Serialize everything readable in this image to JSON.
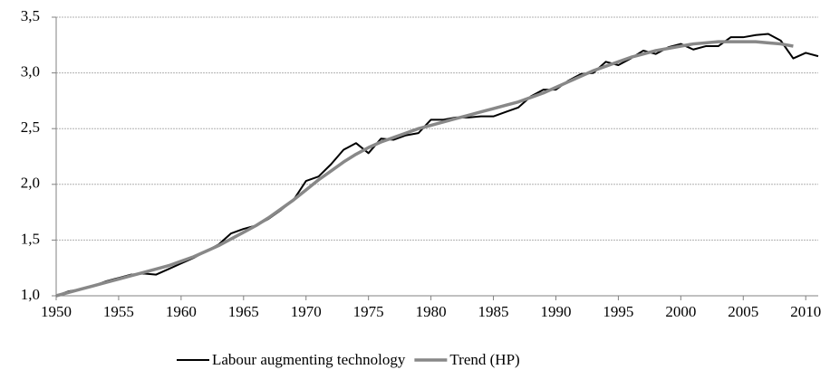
{
  "chart_data": {
    "type": "line",
    "x": [
      1950,
      1951,
      1952,
      1953,
      1954,
      1955,
      1956,
      1957,
      1958,
      1959,
      1960,
      1961,
      1962,
      1963,
      1964,
      1965,
      1966,
      1967,
      1968,
      1969,
      1970,
      1971,
      1972,
      1973,
      1974,
      1975,
      1976,
      1977,
      1978,
      1979,
      1980,
      1981,
      1982,
      1983,
      1984,
      1985,
      1986,
      1987,
      1988,
      1989,
      1990,
      1991,
      1992,
      1993,
      1994,
      1995,
      1996,
      1997,
      1998,
      1999,
      2000,
      2001,
      2002,
      2003,
      2004,
      2005,
      2006,
      2007,
      2008,
      2009,
      2010,
      2011
    ],
    "series": [
      {
        "name": "Labour augmenting technology",
        "color": "#000000",
        "width": 2,
        "values": [
          1.0,
          1.04,
          1.06,
          1.09,
          1.13,
          1.16,
          1.19,
          1.2,
          1.19,
          1.24,
          1.29,
          1.34,
          1.4,
          1.46,
          1.56,
          1.6,
          1.63,
          1.69,
          1.77,
          1.86,
          2.03,
          2.07,
          2.18,
          2.31,
          2.37,
          2.28,
          2.41,
          2.4,
          2.44,
          2.46,
          2.58,
          2.58,
          2.6,
          2.6,
          2.61,
          2.61,
          2.65,
          2.69,
          2.79,
          2.85,
          2.85,
          2.93,
          2.99,
          3.0,
          3.1,
          3.07,
          3.13,
          3.2,
          3.17,
          3.23,
          3.26,
          3.21,
          3.24,
          3.24,
          3.32,
          3.32,
          3.34,
          3.35,
          3.29,
          3.13,
          3.18,
          3.15
        ]
      },
      {
        "name": "Trend (HP)",
        "color": "#888888",
        "width": 3.5,
        "values": [
          1.0,
          1.03,
          1.06,
          1.09,
          1.12,
          1.15,
          1.18,
          1.21,
          1.24,
          1.27,
          1.31,
          1.35,
          1.4,
          1.45,
          1.51,
          1.57,
          1.63,
          1.7,
          1.78,
          1.86,
          1.95,
          2.04,
          2.12,
          2.2,
          2.27,
          2.33,
          2.38,
          2.42,
          2.46,
          2.5,
          2.53,
          2.56,
          2.59,
          2.62,
          2.65,
          2.68,
          2.71,
          2.74,
          2.78,
          2.82,
          2.87,
          2.92,
          2.97,
          3.02,
          3.06,
          3.1,
          3.14,
          3.17,
          3.2,
          3.22,
          3.24,
          3.26,
          3.27,
          3.28,
          3.28,
          3.28,
          3.28,
          3.27,
          3.26,
          3.24,
          null,
          null
        ]
      }
    ],
    "xlim": [
      1950,
      2011
    ],
    "xticks": [
      1950,
      1955,
      1960,
      1965,
      1970,
      1975,
      1980,
      1985,
      1990,
      1995,
      2000,
      2005,
      2010
    ],
    "ylim": [
      1.0,
      3.5
    ],
    "yticks": [
      {
        "value": 1.0,
        "label": "1,0"
      },
      {
        "value": 1.5,
        "label": "1,5"
      },
      {
        "value": 2.0,
        "label": "2,0"
      },
      {
        "value": 2.5,
        "label": "2,5"
      },
      {
        "value": 3.0,
        "label": "3,0"
      },
      {
        "value": 3.5,
        "label": "3,5"
      }
    ],
    "grid": true,
    "legend": "bottom"
  }
}
